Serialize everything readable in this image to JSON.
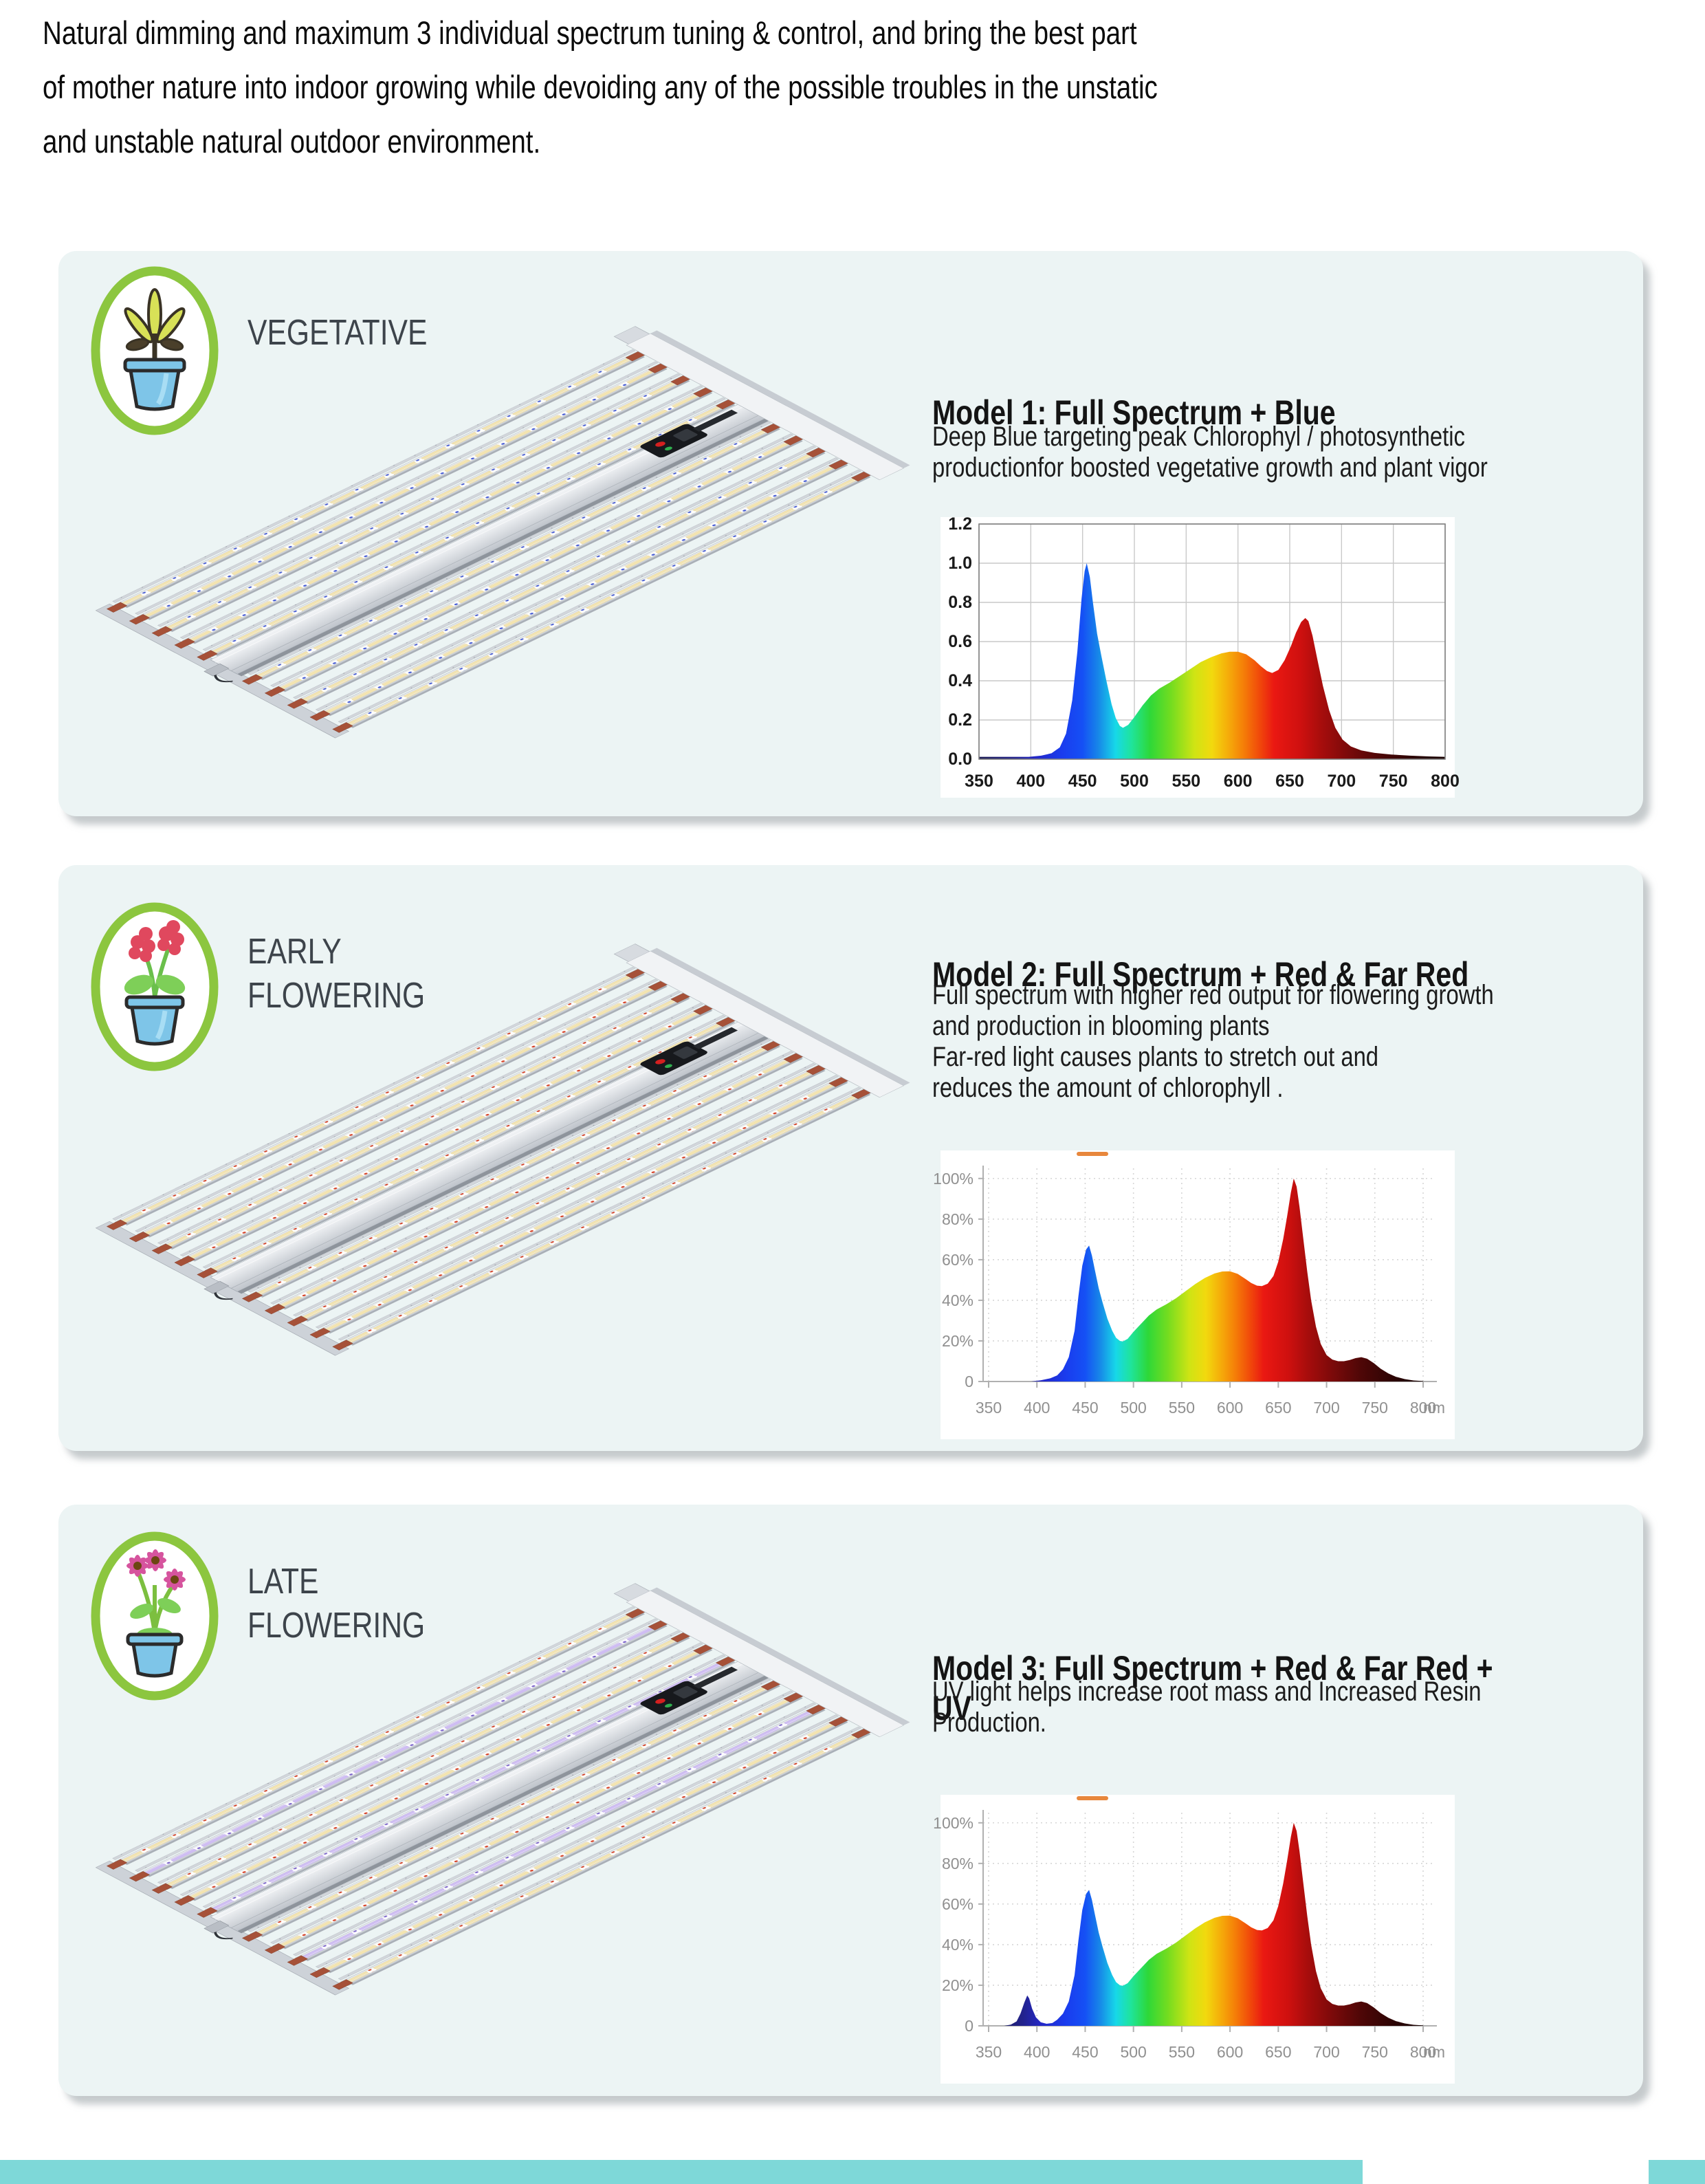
{
  "page": {
    "intro_text": "Natural dimming and maximum 3 individual spectrum tuning & control, and bring the best part\nof mother nature into indoor growing while devoiding any of the possible troubles in the unstatic\nand unstable natural outdoor environment.",
    "background_color": "#ffffff",
    "card_background_color": "#ecf4f4",
    "footer_bar_color": "#7ed8d8"
  },
  "sections": [
    {
      "stage_label": "VEGETATIVE",
      "icon": "vegetative-plant-pot-icon",
      "model_title": "Model 1: Full Spectrum + Blue",
      "description": "Deep Blue targeting peak Chlorophyl / photosynthetic\nproductionfor boosted vegetative growth and plant vigor",
      "fixture": {
        "bars": 10,
        "accent_color": "#4a5fd6",
        "uv_bars": [],
        "led_color": "#f3e4b0",
        "cap_color": "#a65138"
      }
    },
    {
      "stage_label": "EARLY\nFLOWERING",
      "icon": "early-flowering-plant-pot-icon",
      "model_title": "Model 2: Full Spectrum + Red & Far Red",
      "description": "Full spectrum with higher red output for flowering growth\nand production in blooming plants\nFar-red light causes plants to stretch out and\nreduces the amount of chlorophyll .",
      "fixture": {
        "bars": 10,
        "accent_color": "#d6442a",
        "uv_bars": [],
        "led_color": "#f3e4b0",
        "cap_color": "#a65138"
      }
    },
    {
      "stage_label": "LATE\nFLOWERING",
      "icon": "late-flowering-plant-pot-icon",
      "model_title": "Model 3: Full Spectrum + Red & Far Red + UV",
      "description": "UV light helps increase root mass and Increased Resin\nProduction.",
      "fixture": {
        "bars": 10,
        "accent_color": "#d6442a",
        "uv_bars": [
          1,
          4,
          7
        ],
        "led_color": "#f3e4b0",
        "cap_color": "#a65138"
      }
    }
  ],
  "spectrum_gradient": [
    [
      350,
      "#1c1c52"
    ],
    [
      385,
      "#22228c"
    ],
    [
      405,
      "#2428c8"
    ],
    [
      430,
      "#1a3cee"
    ],
    [
      450,
      "#1550f5"
    ],
    [
      465,
      "#1787e8"
    ],
    [
      482,
      "#17d8e8"
    ],
    [
      497,
      "#1fe49c"
    ],
    [
      515,
      "#2ed838"
    ],
    [
      535,
      "#72dc20"
    ],
    [
      558,
      "#cfe414"
    ],
    [
      575,
      "#f2d90e"
    ],
    [
      590,
      "#f5ae0a"
    ],
    [
      605,
      "#f57f08"
    ],
    [
      620,
      "#f14c0a"
    ],
    [
      635,
      "#ea1812"
    ],
    [
      660,
      "#cf100f"
    ],
    [
      680,
      "#a80d0c"
    ],
    [
      705,
      "#7d0a0a"
    ],
    [
      735,
      "#4f0707"
    ],
    [
      770,
      "#2b0404"
    ],
    [
      800,
      "#190303"
    ]
  ],
  "chart_data": [
    {
      "id": "c1",
      "type": "area",
      "title": "",
      "xlabel": "",
      "ylabel": "",
      "xlim": [
        350,
        800
      ],
      "ylim": [
        0,
        1.2
      ],
      "grid": "solid",
      "label_color": "#1a1a1a",
      "x_unit": "",
      "legend_artifact": false,
      "x_ticks": [
        350,
        400,
        450,
        500,
        550,
        600,
        650,
        700,
        750,
        800
      ],
      "y_ticks": [
        {
          "v": 0.0,
          "label": "0.0"
        },
        {
          "v": 0.2,
          "label": "0.2"
        },
        {
          "v": 0.4,
          "label": "0.4"
        },
        {
          "v": 0.6,
          "label": "0.6"
        },
        {
          "v": 0.8,
          "label": "0.8"
        },
        {
          "v": 1.0,
          "label": "1.0"
        },
        {
          "v": 1.2,
          "label": "1.2"
        }
      ],
      "points": [
        [
          350,
          0.012
        ],
        [
          378,
          0.012
        ],
        [
          398,
          0.012
        ],
        [
          410,
          0.018
        ],
        [
          420,
          0.03
        ],
        [
          428,
          0.06
        ],
        [
          434,
          0.13
        ],
        [
          440,
          0.3
        ],
        [
          445,
          0.55
        ],
        [
          449,
          0.82
        ],
        [
          452,
          0.96
        ],
        [
          454,
          1.0
        ],
        [
          457,
          0.93
        ],
        [
          460,
          0.8
        ],
        [
          464,
          0.64
        ],
        [
          468,
          0.53
        ],
        [
          473,
          0.4
        ],
        [
          478,
          0.28
        ],
        [
          482,
          0.21
        ],
        [
          486,
          0.17
        ],
        [
          489,
          0.16
        ],
        [
          494,
          0.175
        ],
        [
          500,
          0.215
        ],
        [
          508,
          0.275
        ],
        [
          516,
          0.325
        ],
        [
          524,
          0.36
        ],
        [
          534,
          0.39
        ],
        [
          544,
          0.425
        ],
        [
          554,
          0.46
        ],
        [
          564,
          0.495
        ],
        [
          574,
          0.52
        ],
        [
          584,
          0.54
        ],
        [
          592,
          0.548
        ],
        [
          600,
          0.548
        ],
        [
          608,
          0.535
        ],
        [
          616,
          0.505
        ],
        [
          622,
          0.475
        ],
        [
          628,
          0.45
        ],
        [
          633,
          0.44
        ],
        [
          639,
          0.455
        ],
        [
          645,
          0.505
        ],
        [
          651,
          0.575
        ],
        [
          656,
          0.645
        ],
        [
          661,
          0.7
        ],
        [
          665,
          0.72
        ],
        [
          668,
          0.705
        ],
        [
          672,
          0.63
        ],
        [
          677,
          0.5
        ],
        [
          682,
          0.375
        ],
        [
          688,
          0.25
        ],
        [
          694,
          0.16
        ],
        [
          701,
          0.1
        ],
        [
          709,
          0.065
        ],
        [
          719,
          0.045
        ],
        [
          732,
          0.032
        ],
        [
          748,
          0.024
        ],
        [
          766,
          0.018
        ],
        [
          784,
          0.014
        ],
        [
          800,
          0.012
        ]
      ]
    },
    {
      "id": "c2",
      "type": "area",
      "title": "",
      "xlabel": "",
      "ylabel": "",
      "xlim": [
        350,
        800
      ],
      "ylim": [
        0,
        105
      ],
      "grid": "dotted",
      "label_color": "#909090",
      "x_unit": "nm",
      "legend_artifact": true,
      "legend_artifact_color": "#e8873c",
      "x_ticks": [
        350,
        400,
        450,
        500,
        550,
        600,
        650,
        700,
        750,
        800
      ],
      "y_ticks": [
        {
          "v": 0,
          "label": "0"
        },
        {
          "v": 20,
          "label": "20%"
        },
        {
          "v": 40,
          "label": "40%"
        },
        {
          "v": 60,
          "label": "60%"
        },
        {
          "v": 80,
          "label": "80%"
        },
        {
          "v": 100,
          "label": "100%"
        }
      ],
      "points": [
        [
          350,
          0
        ],
        [
          394,
          0
        ],
        [
          404,
          0.6
        ],
        [
          414,
          1.6
        ],
        [
          421,
          3
        ],
        [
          427,
          6
        ],
        [
          433,
          12
        ],
        [
          439,
          25
        ],
        [
          443,
          42
        ],
        [
          447,
          57
        ],
        [
          451,
          65
        ],
        [
          454,
          67
        ],
        [
          457,
          62
        ],
        [
          460,
          55
        ],
        [
          464,
          46
        ],
        [
          468,
          39
        ],
        [
          473,
          31
        ],
        [
          478,
          25
        ],
        [
          482,
          21.5
        ],
        [
          486,
          20
        ],
        [
          489,
          19.7
        ],
        [
          494,
          21
        ],
        [
          500,
          24.5
        ],
        [
          508,
          28.5
        ],
        [
          516,
          32.5
        ],
        [
          524,
          35.5
        ],
        [
          534,
          38
        ],
        [
          544,
          41
        ],
        [
          554,
          44.5
        ],
        [
          564,
          48
        ],
        [
          574,
          51
        ],
        [
          584,
          53.2
        ],
        [
          592,
          54.2
        ],
        [
          600,
          54.3
        ],
        [
          608,
          53
        ],
        [
          616,
          50.5
        ],
        [
          622,
          48.5
        ],
        [
          628,
          47.2
        ],
        [
          633,
          47
        ],
        [
          639,
          48.2
        ],
        [
          645,
          52
        ],
        [
          650,
          59
        ],
        [
          655,
          70
        ],
        [
          659,
          81
        ],
        [
          663,
          93
        ],
        [
          666,
          100
        ],
        [
          669,
          96
        ],
        [
          672,
          86
        ],
        [
          676,
          70
        ],
        [
          680,
          54
        ],
        [
          684,
          40
        ],
        [
          689,
          27
        ],
        [
          694,
          18.5
        ],
        [
          700,
          13
        ],
        [
          706,
          10.8
        ],
        [
          712,
          10
        ],
        [
          718,
          10
        ],
        [
          724,
          10.6
        ],
        [
          730,
          11.5
        ],
        [
          736,
          12
        ],
        [
          742,
          11.2
        ],
        [
          749,
          9
        ],
        [
          756,
          6.3
        ],
        [
          764,
          4
        ],
        [
          772,
          2.3
        ],
        [
          781,
          1.2
        ],
        [
          790,
          0.5
        ],
        [
          800,
          0.2
        ]
      ]
    },
    {
      "id": "c3",
      "type": "area",
      "title": "",
      "xlabel": "",
      "ylabel": "",
      "xlim": [
        350,
        800
      ],
      "ylim": [
        0,
        105
      ],
      "grid": "dotted",
      "label_color": "#909090",
      "x_unit": "nm",
      "legend_artifact": true,
      "legend_artifact_color": "#e8873c",
      "x_ticks": [
        350,
        400,
        450,
        500,
        550,
        600,
        650,
        700,
        750,
        800
      ],
      "y_ticks": [
        {
          "v": 0,
          "label": "0"
        },
        {
          "v": 20,
          "label": "20%"
        },
        {
          "v": 40,
          "label": "40%"
        },
        {
          "v": 60,
          "label": "60%"
        },
        {
          "v": 80,
          "label": "80%"
        },
        {
          "v": 100,
          "label": "100%"
        }
      ],
      "points": [
        [
          350,
          0
        ],
        [
          366,
          0
        ],
        [
          373,
          0.6
        ],
        [
          379,
          2.2
        ],
        [
          383,
          6
        ],
        [
          387,
          11.5
        ],
        [
          390,
          15
        ],
        [
          392,
          13.5
        ],
        [
          395,
          8.5
        ],
        [
          399,
          4.2
        ],
        [
          404,
          1.8
        ],
        [
          410,
          1
        ],
        [
          416,
          1.4
        ],
        [
          421,
          3
        ],
        [
          427,
          6
        ],
        [
          433,
          12
        ],
        [
          439,
          25
        ],
        [
          443,
          42
        ],
        [
          447,
          57
        ],
        [
          451,
          65
        ],
        [
          454,
          67
        ],
        [
          457,
          62
        ],
        [
          460,
          55
        ],
        [
          464,
          46
        ],
        [
          468,
          39
        ],
        [
          473,
          31
        ],
        [
          478,
          25
        ],
        [
          482,
          21.5
        ],
        [
          486,
          20
        ],
        [
          489,
          19.7
        ],
        [
          494,
          21
        ],
        [
          500,
          24.5
        ],
        [
          508,
          28.5
        ],
        [
          516,
          32.5
        ],
        [
          524,
          35.5
        ],
        [
          534,
          38
        ],
        [
          544,
          41
        ],
        [
          554,
          44.5
        ],
        [
          564,
          48
        ],
        [
          574,
          51
        ],
        [
          584,
          53.2
        ],
        [
          592,
          54.2
        ],
        [
          600,
          54.3
        ],
        [
          608,
          53
        ],
        [
          616,
          50.5
        ],
        [
          622,
          48.5
        ],
        [
          628,
          47.2
        ],
        [
          633,
          47
        ],
        [
          639,
          48.2
        ],
        [
          645,
          52
        ],
        [
          650,
          59
        ],
        [
          655,
          70
        ],
        [
          659,
          81
        ],
        [
          663,
          93
        ],
        [
          666,
          100
        ],
        [
          669,
          96
        ],
        [
          672,
          86
        ],
        [
          676,
          70
        ],
        [
          680,
          54
        ],
        [
          684,
          40
        ],
        [
          689,
          27
        ],
        [
          694,
          18.5
        ],
        [
          700,
          13
        ],
        [
          706,
          10.8
        ],
        [
          712,
          10
        ],
        [
          718,
          10
        ],
        [
          724,
          10.6
        ],
        [
          730,
          11.5
        ],
        [
          736,
          12
        ],
        [
          742,
          11.2
        ],
        [
          749,
          9
        ],
        [
          756,
          6.3
        ],
        [
          764,
          4
        ],
        [
          772,
          2.3
        ],
        [
          781,
          1.2
        ],
        [
          790,
          0.5
        ],
        [
          800,
          0.2
        ]
      ]
    }
  ]
}
